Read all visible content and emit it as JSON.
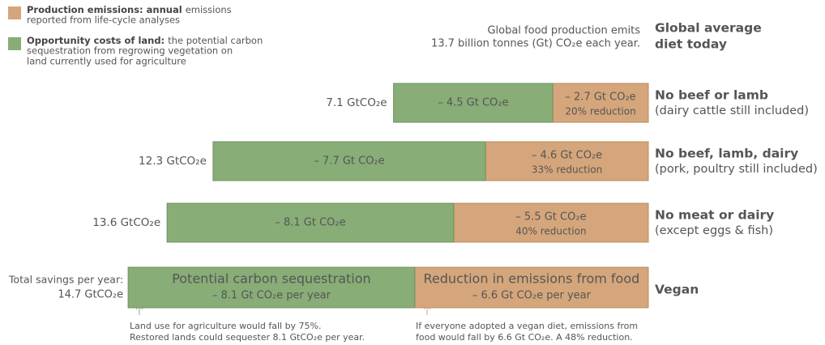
{
  "chart_data": {
    "type": "hbar-stacked",
    "header_note": [
      "Global food production emits",
      "13.7 billion tonnes (Gt) CO₂e each year."
    ],
    "header_category": [
      "Global average",
      "diet today"
    ],
    "categories": [
      "No beef or lamb",
      "No beef, lamb, dairy",
      "No meat or dairy",
      "Vegan"
    ],
    "category_notes": [
      "(dairy cattle still included)",
      "(pork, poultry still included)",
      "(except eggs & fish)"
    ],
    "series": [
      {
        "name": "Production emissions: annual",
        "legend_text": [
          "emissions",
          "reported from life-cycle analyses"
        ],
        "color": "#d5a67b",
        "values": [
          2.7,
          4.6,
          5.5,
          6.6
        ],
        "value_labels": [
          "– 2.7 Gt CO₂e",
          "– 4.6 Gt CO₂e",
          "– 5.5 Gt CO₂e",
          "– 6.6 Gt CO₂e per year"
        ]
      },
      {
        "name": "Opportunity costs of land:",
        "legend_text": [
          "the potential carbon",
          "sequestration from regrowing vegetation on",
          "land currently used for agriculture"
        ],
        "color": "#88ad77",
        "values": [
          4.5,
          7.7,
          8.1,
          8.1
        ],
        "value_labels": [
          "– 4.5 Gt CO₂e",
          "– 7.7 Gt CO₂e",
          "– 8.1 Gt CO₂e",
          "– 8.1 Gt CO₂e per year"
        ]
      }
    ],
    "reduction_labels": [
      "20% reduction",
      "33% reduction",
      "40% reduction"
    ],
    "vegan_titles": [
      "Reduction in emissions from food",
      "Potential carbon sequestration"
    ],
    "total_labels": [
      "7.1 GtCO₂e",
      "12.3 GtCO₂e",
      "13.6 GtCO₂e",
      "14.7 GtCO₂e"
    ],
    "total_prefix": "Total savings per year:",
    "notes": [
      [
        "If everyone adopted a vegan diet, emissions from",
        "food would fall by 6.6 Gt CO₂e. A 48% reduction."
      ],
      [
        "Land use for agriculture would fall by 75%.",
        "Restored lands could sequester 8.1 GtCO₂e per year."
      ]
    ],
    "xlim": [
      0,
      15
    ],
    "xreversed": true
  }
}
